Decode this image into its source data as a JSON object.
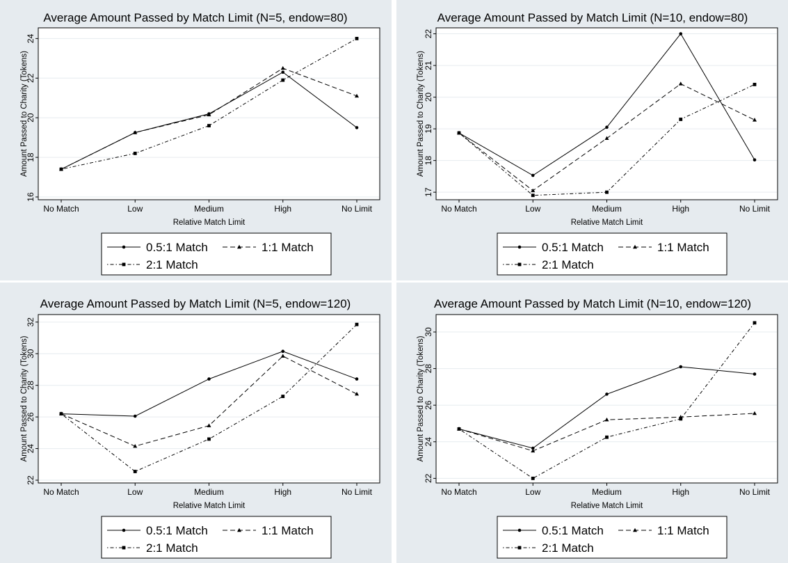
{
  "legend": {
    "s1": "0.5:1 Match",
    "s2": "1:1 Match",
    "s3": "2:1 Match"
  },
  "chart_data": [
    {
      "type": "line",
      "title": "Average Amount Passed by Match Limit (N=5, endow=80)",
      "xlabel": "Relative Match Limit",
      "ylabel": "Amount Passed to Charity (Tokens)",
      "categories": [
        "No Match",
        "Low",
        "Medium",
        "High",
        "No Limit"
      ],
      "yticks": [
        16,
        18,
        20,
        22,
        24
      ],
      "ylim": [
        16,
        24.4
      ],
      "grid": true,
      "legend_position": "bottom",
      "series": [
        {
          "name": "0.5:1 Match",
          "values": [
            17.4,
            19.25,
            20.2,
            22.3,
            19.5
          ]
        },
        {
          "name": "1:1 Match",
          "values": [
            17.4,
            19.25,
            20.15,
            22.5,
            21.1
          ]
        },
        {
          "name": "2:1 Match",
          "values": [
            17.4,
            18.2,
            19.6,
            21.9,
            24.0
          ]
        }
      ]
    },
    {
      "type": "line",
      "title": "Average Amount Passed by Match Limit (N=10, endow=80)",
      "xlabel": "Relative Match Limit",
      "ylabel": "Amount Passed to Charity (Tokens)",
      "categories": [
        "No Match",
        "Low",
        "Medium",
        "High",
        "No Limit"
      ],
      "yticks": [
        17,
        18,
        19,
        20,
        21,
        22
      ],
      "ylim": [
        16.85,
        22.1
      ],
      "grid": true,
      "legend_position": "bottom",
      "series": [
        {
          "name": "0.5:1 Match",
          "values": [
            18.87,
            17.53,
            19.05,
            22.0,
            18.02
          ]
        },
        {
          "name": "1:1 Match",
          "values": [
            18.87,
            17.05,
            18.7,
            20.42,
            19.28
          ]
        },
        {
          "name": "2:1 Match",
          "values": [
            18.87,
            16.9,
            17.0,
            19.3,
            20.4
          ]
        }
      ]
    },
    {
      "type": "line",
      "title": "Average Amount Passed by Match Limit (N=5, endow=120)",
      "xlabel": "Relative Match Limit",
      "ylabel": "Amount Passed to Charity (Tokens)",
      "categories": [
        "No Match",
        "Low",
        "Medium",
        "High",
        "No Limit"
      ],
      "yticks": [
        22,
        24,
        26,
        28,
        30,
        32
      ],
      "ylim": [
        22,
        32.3
      ],
      "grid": true,
      "legend_position": "bottom",
      "series": [
        {
          "name": "0.5:1 Match",
          "values": [
            26.2,
            26.05,
            28.4,
            30.15,
            28.4
          ]
        },
        {
          "name": "1:1 Match",
          "values": [
            26.2,
            24.15,
            25.45,
            29.85,
            27.45
          ]
        },
        {
          "name": "2:1 Match",
          "values": [
            26.2,
            22.55,
            24.6,
            27.3,
            31.85
          ]
        }
      ]
    },
    {
      "type": "line",
      "title": "Average Amount Passed by Match Limit (N=10, endow=120)",
      "xlabel": "Relative Match Limit",
      "ylabel": "Amount Passed to Charity (Tokens)",
      "categories": [
        "No Match",
        "Low",
        "Medium",
        "High",
        "No Limit"
      ],
      "yticks": [
        22,
        24,
        26,
        28,
        30
      ],
      "ylim": [
        21.9,
        30.8
      ],
      "grid": true,
      "legend_position": "bottom",
      "series": [
        {
          "name": "0.5:1 Match",
          "values": [
            24.7,
            23.65,
            26.6,
            28.1,
            27.7
          ]
        },
        {
          "name": "1:1 Match",
          "values": [
            24.7,
            23.5,
            25.2,
            25.35,
            25.55
          ]
        },
        {
          "name": "2:1 Match",
          "values": [
            24.7,
            22.0,
            24.25,
            25.25,
            30.5
          ]
        }
      ]
    }
  ]
}
